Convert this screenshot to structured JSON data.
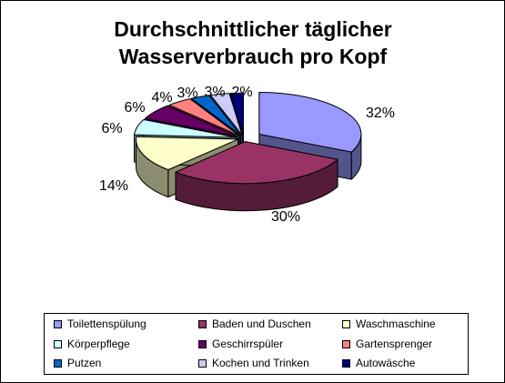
{
  "chart_data": {
    "type": "pie",
    "style": "3d-exploded",
    "title_lines": [
      "Durchschnittlicher täglicher",
      "Wasserverbrauch pro Kopf"
    ],
    "categories": [
      "Toilettenspülung",
      "Baden und Duschen",
      "Waschmaschine",
      "Körperpflege",
      "Geschirrspüler",
      "Gartensprenger",
      "Putzen",
      "Kochen und Trinken",
      "Autowäsche"
    ],
    "values": [
      32,
      30,
      14,
      6,
      6,
      4,
      3,
      3,
      2
    ],
    "value_labels": [
      "32%",
      "30%",
      "14%",
      "6%",
      "6%",
      "4%",
      "3%",
      "3%",
      "2%"
    ],
    "colors": [
      "#9999ff",
      "#993366",
      "#ffffcc",
      "#ccffff",
      "#660066",
      "#ff8080",
      "#0066cc",
      "#ccccff",
      "#000080"
    ],
    "legend_position": "bottom"
  }
}
